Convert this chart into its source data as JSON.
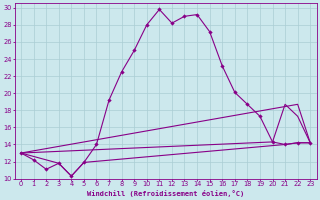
{
  "xlabel": "Windchill (Refroidissement éolien,°C)",
  "bg_color": "#cce8ed",
  "grid_color": "#aacdd4",
  "line_color": "#880088",
  "xlim": [
    -0.5,
    23.5
  ],
  "ylim": [
    10,
    30.5
  ],
  "yticks": [
    10,
    12,
    14,
    16,
    18,
    20,
    22,
    24,
    26,
    28,
    30
  ],
  "xticks": [
    0,
    1,
    2,
    3,
    4,
    5,
    6,
    7,
    8,
    9,
    10,
    11,
    12,
    13,
    14,
    15,
    16,
    17,
    18,
    19,
    20,
    21,
    22,
    23
  ],
  "series1_x": [
    0,
    1,
    2,
    3,
    4,
    5,
    6,
    7,
    8,
    9,
    10,
    11,
    12,
    13,
    14,
    15,
    16,
    17,
    18,
    19,
    20,
    21,
    22,
    23
  ],
  "series1_y": [
    13.0,
    12.2,
    11.1,
    11.8,
    10.3,
    11.9,
    14.0,
    19.2,
    22.5,
    25.0,
    28.0,
    29.8,
    28.2,
    29.0,
    29.2,
    27.2,
    23.2,
    20.1,
    18.7,
    17.3,
    14.3,
    14.0,
    14.2,
    14.2
  ],
  "series2_x": [
    0,
    3,
    4,
    5,
    21,
    22,
    23
  ],
  "series2_y": [
    13.0,
    11.8,
    10.3,
    11.9,
    14.0,
    14.2,
    14.2
  ],
  "series3_x": [
    0,
    20,
    21,
    22,
    23
  ],
  "series3_y": [
    13.0,
    14.3,
    18.7,
    17.3,
    14.2
  ],
  "series4_x": [
    0,
    22,
    23
  ],
  "series4_y": [
    13.0,
    18.7,
    14.2
  ]
}
